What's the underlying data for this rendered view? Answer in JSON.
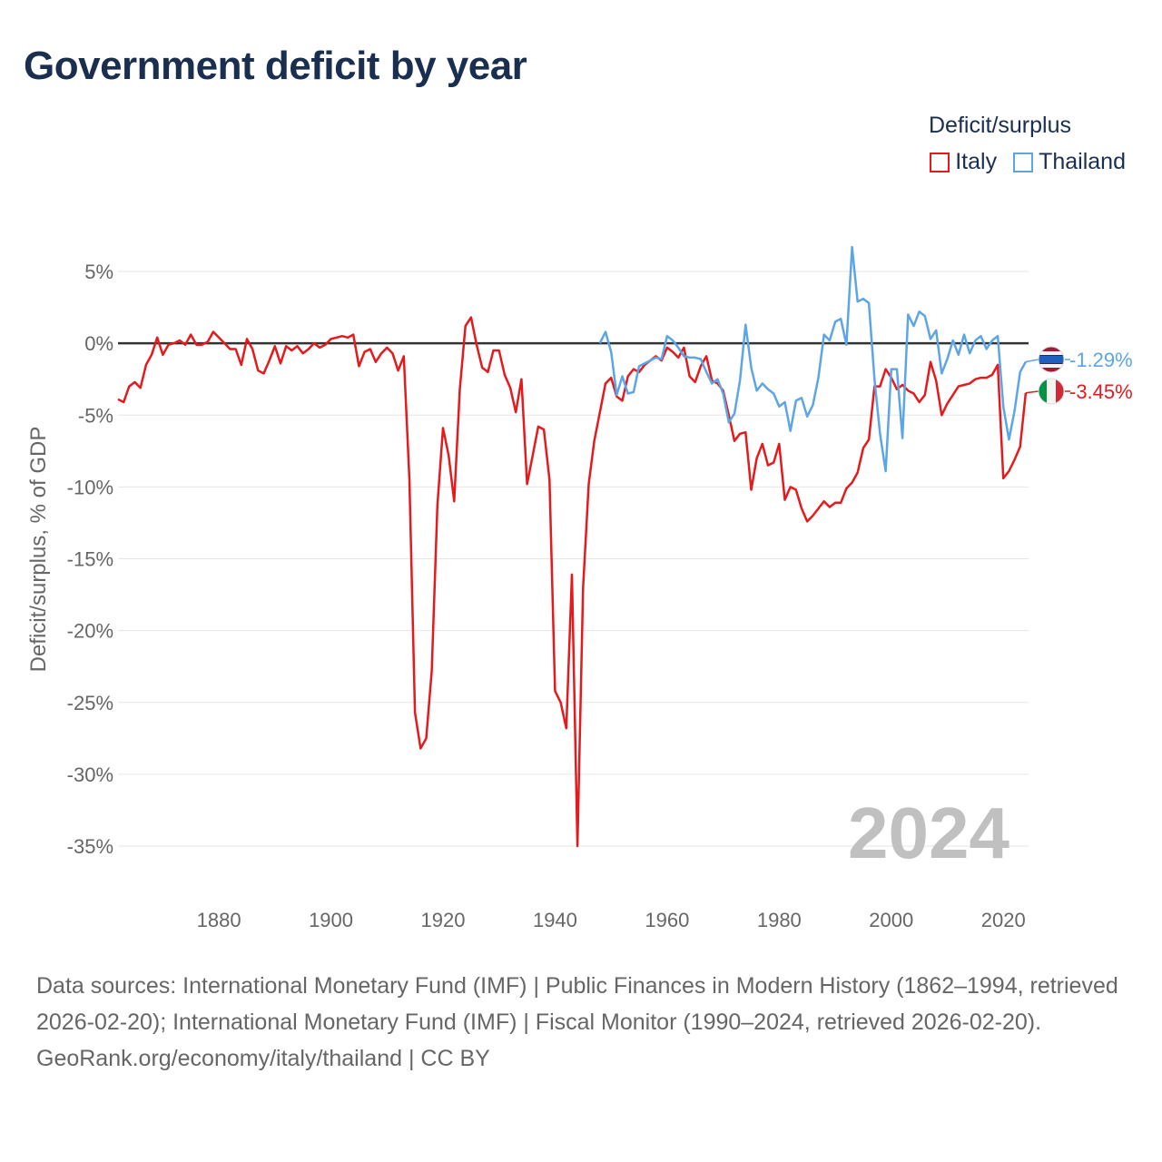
{
  "title": "Government deficit by year",
  "legend": {
    "title": "Deficit/surplus",
    "items": [
      {
        "name": "Italy",
        "color": "#e41a1c"
      },
      {
        "name": "Thailand",
        "color": "#5ca5e6"
      }
    ]
  },
  "year_label": "2024",
  "footer": {
    "sources": "Data sources: International Monetary Fund (IMF) | Public Finances in Modern History (1862–1994, retrieved 2026-02-20); International Monetary Fund (IMF) | Fiscal Monitor (1990–2024, retrieved 2026-02-20).",
    "credit": "GeoRank.org/economy/italy/thailand | CC BY"
  },
  "chart_data": {
    "type": "line",
    "title": "Government deficit by year",
    "xlabel": "",
    "ylabel": "Deficit/surplus, % of GDP",
    "xlim": [
      1862,
      2024
    ],
    "ylim": [
      -35,
      5
    ],
    "x_ticks": [
      1880,
      1900,
      1920,
      1940,
      1960,
      1980,
      2000,
      2020
    ],
    "y_ticks": [
      5,
      0,
      -5,
      -10,
      -15,
      -20,
      -25,
      -30,
      -35
    ],
    "y_tick_labels": [
      "5%",
      "0%",
      "-5%",
      "-10%",
      "-15%",
      "-20%",
      "-25%",
      "-30%",
      "-35%"
    ],
    "end_labels": [
      {
        "series": "Thailand",
        "label": "-1.29%",
        "value": -1.29,
        "color": "#5ca5e6"
      },
      {
        "series": "Italy",
        "label": "-3.45%",
        "value": -3.45,
        "color": "#e41a1c"
      }
    ],
    "series": [
      {
        "name": "Italy",
        "color": "#e41a1c",
        "points": [
          [
            1862,
            -3.9
          ],
          [
            1863,
            -4.1
          ],
          [
            1864,
            -3.0
          ],
          [
            1865,
            -2.7
          ],
          [
            1866,
            -3.1
          ],
          [
            1867,
            -1.5
          ],
          [
            1868,
            -0.8
          ],
          [
            1869,
            0.4
          ],
          [
            1870,
            -0.8
          ],
          [
            1871,
            -0.1
          ],
          [
            1872,
            0.0
          ],
          [
            1873,
            0.2
          ],
          [
            1874,
            -0.1
          ],
          [
            1875,
            0.6
          ],
          [
            1876,
            -0.1
          ],
          [
            1877,
            -0.1
          ],
          [
            1878,
            0.1
          ],
          [
            1879,
            0.8
          ],
          [
            1880,
            0.4
          ],
          [
            1881,
            0.0
          ],
          [
            1882,
            -0.4
          ],
          [
            1883,
            -0.4
          ],
          [
            1884,
            -1.5
          ],
          [
            1885,
            0.3
          ],
          [
            1886,
            -0.4
          ],
          [
            1887,
            -1.9
          ],
          [
            1888,
            -2.1
          ],
          [
            1889,
            -1.2
          ],
          [
            1890,
            -0.2
          ],
          [
            1891,
            -1.4
          ],
          [
            1892,
            -0.2
          ],
          [
            1893,
            -0.5
          ],
          [
            1894,
            -0.2
          ],
          [
            1895,
            -0.7
          ],
          [
            1896,
            -0.4
          ],
          [
            1897,
            0.0
          ],
          [
            1898,
            -0.3
          ],
          [
            1899,
            -0.1
          ],
          [
            1900,
            0.3
          ],
          [
            1901,
            0.4
          ],
          [
            1902,
            0.5
          ],
          [
            1903,
            0.4
          ],
          [
            1904,
            0.6
          ],
          [
            1905,
            -1.6
          ],
          [
            1906,
            -0.6
          ],
          [
            1907,
            -0.4
          ],
          [
            1908,
            -1.3
          ],
          [
            1909,
            -0.7
          ],
          [
            1910,
            -0.3
          ],
          [
            1911,
            -0.7
          ],
          [
            1912,
            -1.9
          ],
          [
            1913,
            -0.9
          ],
          [
            1914,
            -9.5
          ],
          [
            1915,
            -25.7
          ],
          [
            1916,
            -28.2
          ],
          [
            1917,
            -27.5
          ],
          [
            1918,
            -22.8
          ],
          [
            1919,
            -11.3
          ],
          [
            1920,
            -5.9
          ],
          [
            1921,
            -7.8
          ],
          [
            1922,
            -11.0
          ],
          [
            1923,
            -3.2
          ],
          [
            1924,
            1.2
          ],
          [
            1925,
            1.8
          ],
          [
            1926,
            -0.1
          ],
          [
            1927,
            -1.7
          ],
          [
            1928,
            -2.0
          ],
          [
            1929,
            -0.5
          ],
          [
            1930,
            -0.5
          ],
          [
            1931,
            -2.2
          ],
          [
            1932,
            -3.1
          ],
          [
            1933,
            -4.8
          ],
          [
            1934,
            -2.5
          ],
          [
            1935,
            -9.8
          ],
          [
            1936,
            -7.8
          ],
          [
            1937,
            -5.8
          ],
          [
            1938,
            -6.0
          ],
          [
            1939,
            -9.5
          ],
          [
            1940,
            -24.2
          ],
          [
            1941,
            -25.0
          ],
          [
            1942,
            -26.8
          ],
          [
            1943,
            -16.1
          ],
          [
            1944,
            -35.0
          ],
          [
            1945,
            -17.0
          ],
          [
            1946,
            -9.8
          ],
          [
            1947,
            -6.8
          ],
          [
            1948,
            -4.8
          ],
          [
            1949,
            -2.8
          ],
          [
            1950,
            -2.4
          ],
          [
            1951,
            -3.7
          ],
          [
            1952,
            -4.0
          ],
          [
            1953,
            -2.3
          ],
          [
            1954,
            -1.8
          ],
          [
            1955,
            -2.0
          ],
          [
            1956,
            -1.5
          ],
          [
            1957,
            -1.2
          ],
          [
            1958,
            -0.9
          ],
          [
            1959,
            -1.2
          ],
          [
            1960,
            -0.3
          ],
          [
            1961,
            -0.6
          ],
          [
            1962,
            -1.0
          ],
          [
            1963,
            -0.3
          ],
          [
            1964,
            -2.3
          ],
          [
            1965,
            -2.7
          ],
          [
            1966,
            -1.6
          ],
          [
            1967,
            -0.9
          ],
          [
            1968,
            -2.6
          ],
          [
            1969,
            -2.8
          ],
          [
            1970,
            -3.3
          ],
          [
            1971,
            -5.0
          ],
          [
            1972,
            -6.8
          ],
          [
            1973,
            -6.3
          ],
          [
            1974,
            -6.2
          ],
          [
            1975,
            -10.2
          ],
          [
            1976,
            -8.0
          ],
          [
            1977,
            -7.0
          ],
          [
            1978,
            -8.5
          ],
          [
            1979,
            -8.3
          ],
          [
            1980,
            -7.0
          ],
          [
            1981,
            -10.9
          ],
          [
            1982,
            -10.0
          ],
          [
            1983,
            -10.2
          ],
          [
            1984,
            -11.5
          ],
          [
            1985,
            -12.4
          ],
          [
            1986,
            -12.0
          ],
          [
            1987,
            -11.5
          ],
          [
            1988,
            -11.0
          ],
          [
            1989,
            -11.4
          ],
          [
            1990,
            -11.1
          ],
          [
            1991,
            -11.1
          ],
          [
            1992,
            -10.1
          ],
          [
            1993,
            -9.7
          ],
          [
            1994,
            -9.0
          ],
          [
            1995,
            -7.3
          ],
          [
            1996,
            -6.7
          ],
          [
            1997,
            -3.0
          ],
          [
            1998,
            -3.0
          ],
          [
            1999,
            -1.8
          ],
          [
            2000,
            -2.4
          ],
          [
            2001,
            -3.2
          ],
          [
            2002,
            -2.9
          ],
          [
            2003,
            -3.3
          ],
          [
            2004,
            -3.5
          ],
          [
            2005,
            -4.1
          ],
          [
            2006,
            -3.6
          ],
          [
            2007,
            -1.3
          ],
          [
            2008,
            -2.6
          ],
          [
            2009,
            -5.0
          ],
          [
            2010,
            -4.2
          ],
          [
            2011,
            -3.6
          ],
          [
            2012,
            -3.0
          ],
          [
            2013,
            -2.9
          ],
          [
            2014,
            -2.8
          ],
          [
            2015,
            -2.5
          ],
          [
            2016,
            -2.4
          ],
          [
            2017,
            -2.4
          ],
          [
            2018,
            -2.2
          ],
          [
            2019,
            -1.5
          ],
          [
            2020,
            -9.4
          ],
          [
            2021,
            -8.9
          ],
          [
            2022,
            -8.1
          ],
          [
            2023,
            -7.2
          ],
          [
            2024,
            -3.45
          ]
        ]
      },
      {
        "name": "Thailand",
        "color": "#5ca5e6",
        "points": [
          [
            1948,
            0.0
          ],
          [
            1949,
            0.8
          ],
          [
            1950,
            -0.6
          ],
          [
            1951,
            -3.6
          ],
          [
            1952,
            -2.3
          ],
          [
            1953,
            -3.5
          ],
          [
            1954,
            -3.4
          ],
          [
            1955,
            -1.6
          ],
          [
            1956,
            -1.4
          ],
          [
            1957,
            -1.2
          ],
          [
            1958,
            -1.0
          ],
          [
            1959,
            -1.1
          ],
          [
            1960,
            0.5
          ],
          [
            1961,
            0.2
          ],
          [
            1962,
            -0.3
          ],
          [
            1963,
            -0.9
          ],
          [
            1964,
            -1.0
          ],
          [
            1965,
            -1.0
          ],
          [
            1966,
            -1.1
          ],
          [
            1967,
            -2.0
          ],
          [
            1968,
            -2.8
          ],
          [
            1969,
            -2.5
          ],
          [
            1970,
            -3.5
          ],
          [
            1971,
            -5.5
          ],
          [
            1972,
            -4.9
          ],
          [
            1973,
            -2.6
          ],
          [
            1974,
            1.3
          ],
          [
            1975,
            -1.7
          ],
          [
            1976,
            -3.3
          ],
          [
            1977,
            -2.8
          ],
          [
            1978,
            -3.2
          ],
          [
            1979,
            -3.5
          ],
          [
            1980,
            -4.4
          ],
          [
            1981,
            -4.1
          ],
          [
            1982,
            -6.1
          ],
          [
            1983,
            -4.0
          ],
          [
            1984,
            -3.8
          ],
          [
            1985,
            -5.1
          ],
          [
            1986,
            -4.3
          ],
          [
            1987,
            -2.4
          ],
          [
            1988,
            0.6
          ],
          [
            1989,
            0.2
          ],
          [
            1990,
            1.5
          ],
          [
            1991,
            1.7
          ],
          [
            1992,
            -0.1
          ],
          [
            1993,
            6.7
          ],
          [
            1994,
            2.9
          ],
          [
            1995,
            3.1
          ],
          [
            1996,
            2.8
          ],
          [
            1997,
            -2.5
          ],
          [
            1998,
            -6.3
          ],
          [
            1999,
            -8.9
          ],
          [
            2000,
            -1.8
          ],
          [
            2001,
            -1.8
          ],
          [
            2002,
            -6.6
          ],
          [
            2003,
            2.0
          ],
          [
            2004,
            1.2
          ],
          [
            2005,
            2.2
          ],
          [
            2006,
            1.9
          ],
          [
            2007,
            0.3
          ],
          [
            2008,
            0.9
          ],
          [
            2009,
            -2.1
          ],
          [
            2010,
            -1.1
          ],
          [
            2011,
            0.2
          ],
          [
            2012,
            -0.8
          ],
          [
            2013,
            0.6
          ],
          [
            2014,
            -0.7
          ],
          [
            2015,
            0.2
          ],
          [
            2016,
            0.5
          ],
          [
            2017,
            -0.4
          ],
          [
            2018,
            0.2
          ],
          [
            2019,
            0.5
          ],
          [
            2020,
            -4.4
          ],
          [
            2021,
            -6.7
          ],
          [
            2022,
            -4.7
          ],
          [
            2023,
            -2.0
          ],
          [
            2024,
            -1.29
          ]
        ]
      }
    ]
  }
}
